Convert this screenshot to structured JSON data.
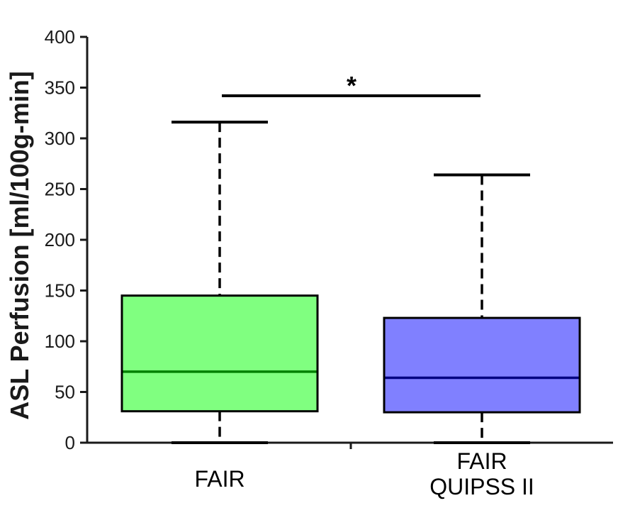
{
  "chart_data": {
    "type": "box",
    "ylabel": "ASL Perfusion [ml/100g-min]",
    "ylim": [
      0,
      400
    ],
    "yticks": [
      "0",
      "50",
      "100",
      "150",
      "200",
      "250",
      "300",
      "350",
      "400"
    ],
    "grid": false,
    "boxes": [
      {
        "label_lines": [
          "FAIR"
        ],
        "whisker_low": 0,
        "q1": 31,
        "median": 70,
        "q3": 145,
        "whisker_high": 316,
        "fill": "#80ff80",
        "median_color": "#008000"
      },
      {
        "label_lines": [
          "FAIR",
          "QUIPSS II"
        ],
        "whisker_low": 0,
        "q1": 30,
        "median": 64,
        "q3": 123,
        "whisker_high": 264,
        "fill": "#8080ff",
        "median_color": "#000080"
      }
    ],
    "significance": {
      "label": "*",
      "value": 342,
      "between": [
        0,
        1
      ]
    }
  }
}
